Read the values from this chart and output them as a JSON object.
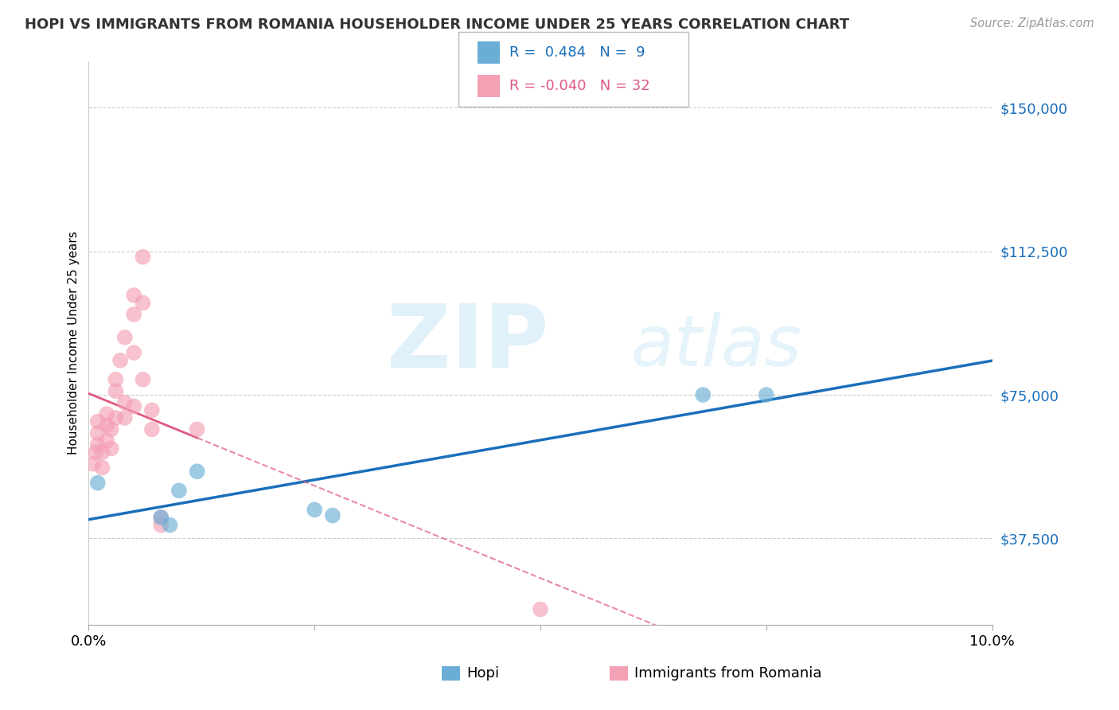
{
  "title": "HOPI VS IMMIGRANTS FROM ROMANIA HOUSEHOLDER INCOME UNDER 25 YEARS CORRELATION CHART",
  "source": "Source: ZipAtlas.com",
  "ylabel": "Householder Income Under 25 years",
  "legend_hopi_r": "0.484",
  "legend_hopi_n": "9",
  "legend_romania_r": "-0.040",
  "legend_romania_n": "32",
  "hopi_color": "#6aaed6",
  "hopi_line_color": "#1a6fba",
  "romania_color": "#f4a0b5",
  "romania_line_color": "#e05880",
  "background_color": "#ffffff",
  "grid_color": "#cccccc",
  "y_ticks": [
    37500,
    75000,
    112500,
    150000
  ],
  "y_tick_labels": [
    "$37,500",
    "$75,000",
    "$112,500",
    "$150,000"
  ],
  "xlim": [
    0.0,
    0.1
  ],
  "ylim": [
    15000,
    162000
  ],
  "hopi_points": [
    [
      0.001,
      52000
    ],
    [
      0.008,
      43000
    ],
    [
      0.009,
      41000
    ],
    [
      0.01,
      50000
    ],
    [
      0.012,
      55000
    ],
    [
      0.025,
      45000
    ],
    [
      0.027,
      43500
    ],
    [
      0.068,
      75000
    ],
    [
      0.075,
      75000
    ]
  ],
  "romania_points": [
    [
      0.0005,
      57000
    ],
    [
      0.0008,
      60000
    ],
    [
      0.001,
      62000
    ],
    [
      0.001,
      65000
    ],
    [
      0.001,
      68000
    ],
    [
      0.0015,
      56000
    ],
    [
      0.0015,
      60000
    ],
    [
      0.002,
      63000
    ],
    [
      0.002,
      67000
    ],
    [
      0.002,
      70000
    ],
    [
      0.0025,
      61000
    ],
    [
      0.0025,
      66000
    ],
    [
      0.003,
      69000
    ],
    [
      0.003,
      76000
    ],
    [
      0.003,
      79000
    ],
    [
      0.0035,
      84000
    ],
    [
      0.004,
      69000
    ],
    [
      0.004,
      73000
    ],
    [
      0.004,
      90000
    ],
    [
      0.005,
      72000
    ],
    [
      0.005,
      86000
    ],
    [
      0.005,
      96000
    ],
    [
      0.005,
      101000
    ],
    [
      0.006,
      79000
    ],
    [
      0.006,
      99000
    ],
    [
      0.006,
      111000
    ],
    [
      0.007,
      66000
    ],
    [
      0.007,
      71000
    ],
    [
      0.008,
      41000
    ],
    [
      0.008,
      43000
    ],
    [
      0.012,
      66000
    ],
    [
      0.05,
      19000
    ]
  ]
}
